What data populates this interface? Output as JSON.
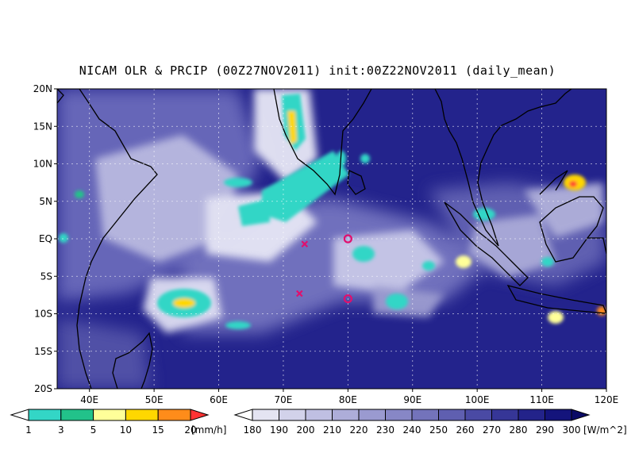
{
  "title": "NICAM OLR & PRCIP (00Z27NOV2011) init:00Z22NOV2011 (daily_mean)",
  "map": {
    "lon_range": [
      35,
      120
    ],
    "lat_range": [
      -20,
      20
    ],
    "lat_labels": [
      "20N",
      "15N",
      "10N",
      "5N",
      "EQ",
      "5S",
      "10S",
      "15S",
      "20S"
    ],
    "lat_values": [
      20,
      15,
      10,
      5,
      0,
      -5,
      -10,
      -15,
      -20
    ],
    "lon_labels": [
      "40E",
      "50E",
      "60E",
      "70E",
      "80E",
      "90E",
      "100E",
      "110E",
      "120E"
    ],
    "lon_values": [
      40,
      50,
      60,
      70,
      80,
      90,
      100,
      110,
      120
    ],
    "grid": true,
    "markers": [
      {
        "type": "x",
        "lon": 73.3,
        "lat": -0.7
      },
      {
        "type": "o",
        "lon": 80.0,
        "lat": 0.0
      },
      {
        "type": "x",
        "lon": 72.5,
        "lat": -7.3
      },
      {
        "type": "o",
        "lon": 80.0,
        "lat": -8.0
      }
    ]
  },
  "precip_legend": {
    "values": [
      "1",
      "3",
      "5",
      "10",
      "15",
      "20"
    ],
    "unit": "[mm/h]",
    "colors": [
      "#ffffff",
      "#33d6c6",
      "#22c28a",
      "#ffff99",
      "#ffd700",
      "#ff8c1a",
      "#ff3333"
    ]
  },
  "olr_legend": {
    "values": [
      "180",
      "190",
      "200",
      "210",
      "220",
      "230",
      "240",
      "250",
      "260",
      "270",
      "280",
      "290",
      "300"
    ],
    "unit": "[W/m^2]",
    "colors": [
      "#ffffff",
      "#e4e4f2",
      "#d2d2ea",
      "#bfbfe2",
      "#adadd9",
      "#9a9ad0",
      "#8787c6",
      "#7373bb",
      "#5f5fb0",
      "#4a4aa4",
      "#363697",
      "#23238a",
      "#14147c",
      "#0a0a66"
    ]
  },
  "colors": {
    "ocean_base": "#23238c",
    "marker": "#e0106e"
  }
}
